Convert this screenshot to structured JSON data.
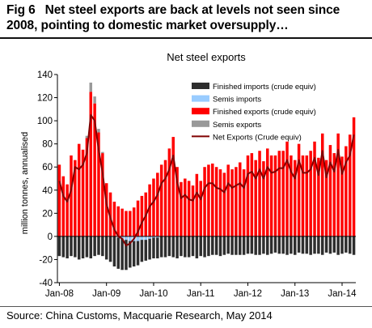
{
  "figure": {
    "number": "Fig 6",
    "title": "Net steel exports are back at levels not seen since 2008, pointing to domestic market oversupply…",
    "source": "Source: China Customs, Macquarie Research, May 2014"
  },
  "chart_data": {
    "type": "bar",
    "title": "Net steel exports",
    "ylabel": "million tonnes, annualised",
    "xlabel": "",
    "ylim": [
      -40,
      140
    ],
    "yticks": [
      -40,
      -20,
      0,
      20,
      40,
      60,
      80,
      100,
      120,
      140
    ],
    "x_tick_labels": [
      "Jan-08",
      "Jan-09",
      "Jan-10",
      "Jan-11",
      "Jan-12",
      "Jan-13",
      "Jan-14"
    ],
    "legend_position": "top-right",
    "grid": false,
    "colors": {
      "finished_imports": "#2e2e2e",
      "semis_imports": "#99ccff",
      "finished_exports": "#ff0000",
      "semis_exports": "#999999",
      "net_exports": "#800000"
    },
    "series": [
      {
        "key": "finished_imports",
        "name": "Finished imports (crude equiv)",
        "values": [
          -17,
          -18,
          -19,
          -17,
          -18,
          -20,
          -19,
          -18,
          -19,
          -17,
          -16,
          -17,
          -20,
          -22,
          -26,
          -28,
          -29,
          -29,
          -27,
          -26,
          -25,
          -22,
          -21,
          -20,
          -19,
          -19,
          -18,
          -18,
          -17,
          -18,
          -19,
          -17,
          -18,
          -18,
          -17,
          -19,
          -17,
          -18,
          -17,
          -16,
          -16,
          -17,
          -16,
          -15,
          -16,
          -16,
          -16,
          -16,
          -15,
          -15,
          -16,
          -16,
          -15,
          -16,
          -15,
          -14,
          -15,
          -15,
          -16,
          -15,
          -16,
          -14,
          -15,
          -15,
          -16,
          -15,
          -15,
          -16,
          -14,
          -15,
          -14,
          -16,
          -15,
          -14,
          -15,
          -16
        ]
      },
      {
        "key": "semis_imports",
        "name": "Semis imports",
        "values": [
          0,
          0,
          0,
          0,
          0,
          0,
          0,
          0,
          0,
          0,
          0,
          0,
          0,
          0,
          0,
          -1,
          -2,
          -3,
          -4,
          -4,
          -4,
          -3,
          -3,
          -2,
          -1,
          -1,
          0,
          0,
          0,
          0,
          0,
          0,
          0,
          0,
          0,
          0,
          0,
          0,
          0,
          0,
          0,
          0,
          0,
          0,
          0,
          0,
          0,
          0,
          0,
          0,
          0,
          0,
          0,
          0,
          0,
          0,
          0,
          0,
          0,
          0,
          0,
          0,
          0,
          0,
          0,
          0,
          0,
          0,
          0,
          0,
          0,
          0,
          0,
          0,
          0,
          0
        ]
      },
      {
        "key": "finished_exports",
        "name": "Finished exports (crude equiv)",
        "values": [
          62,
          52,
          45,
          70,
          66,
          80,
          75,
          85,
          125,
          115,
          90,
          72,
          46,
          38,
          30,
          26,
          24,
          22,
          22,
          25,
          31,
          35,
          38,
          45,
          50,
          55,
          62,
          66,
          76,
          86,
          60,
          47,
          50,
          48,
          44,
          54,
          48,
          60,
          62,
          63,
          60,
          58,
          55,
          62,
          58,
          60,
          64,
          58,
          70,
          72,
          66,
          74,
          65,
          76,
          70,
          70,
          74,
          74,
          82,
          70,
          66,
          80,
          70,
          70,
          74,
          82,
          68,
          89,
          66,
          79,
          72,
          89,
          69,
          78,
          88,
          103
        ]
      },
      {
        "key": "semis_exports",
        "name": "Semis exports",
        "values": [
          0,
          0,
          0,
          0,
          0,
          0,
          0,
          2,
          8,
          6,
          3,
          1,
          0,
          0,
          0,
          0,
          0,
          0,
          0,
          0,
          0,
          0,
          0,
          0,
          0,
          0,
          0,
          0,
          0,
          0,
          0,
          0,
          0,
          0,
          0,
          0,
          0,
          0,
          0,
          0,
          0,
          0,
          0,
          0,
          0,
          0,
          0,
          0,
          0,
          0,
          0,
          0,
          0,
          0,
          0,
          0,
          0,
          0,
          0,
          0,
          0,
          0,
          0,
          0,
          0,
          0,
          0,
          0,
          0,
          0,
          0,
          0,
          0,
          0,
          0,
          0
        ]
      },
      {
        "key": "net_exports",
        "name": "Net Exports (Crude equiv)",
        "values": [
          48,
          35,
          30,
          40,
          60,
          58,
          62,
          72,
          105,
          100,
          75,
          55,
          28,
          16,
          6,
          0,
          -2,
          -8,
          -6,
          -2,
          4,
          12,
          18,
          26,
          30,
          36,
          46,
          50,
          58,
          70,
          47,
          33,
          36,
          32,
          31,
          38,
          32,
          42,
          46,
          46,
          42,
          41,
          38,
          46,
          42,
          44,
          46,
          42,
          54,
          56,
          50,
          58,
          50,
          60,
          55,
          56,
          59,
          59,
          66,
          56,
          50,
          66,
          55,
          55,
          58,
          68,
          53,
          74,
          51,
          64,
          56,
          75,
          54,
          64,
          70,
          88
        ]
      }
    ]
  }
}
